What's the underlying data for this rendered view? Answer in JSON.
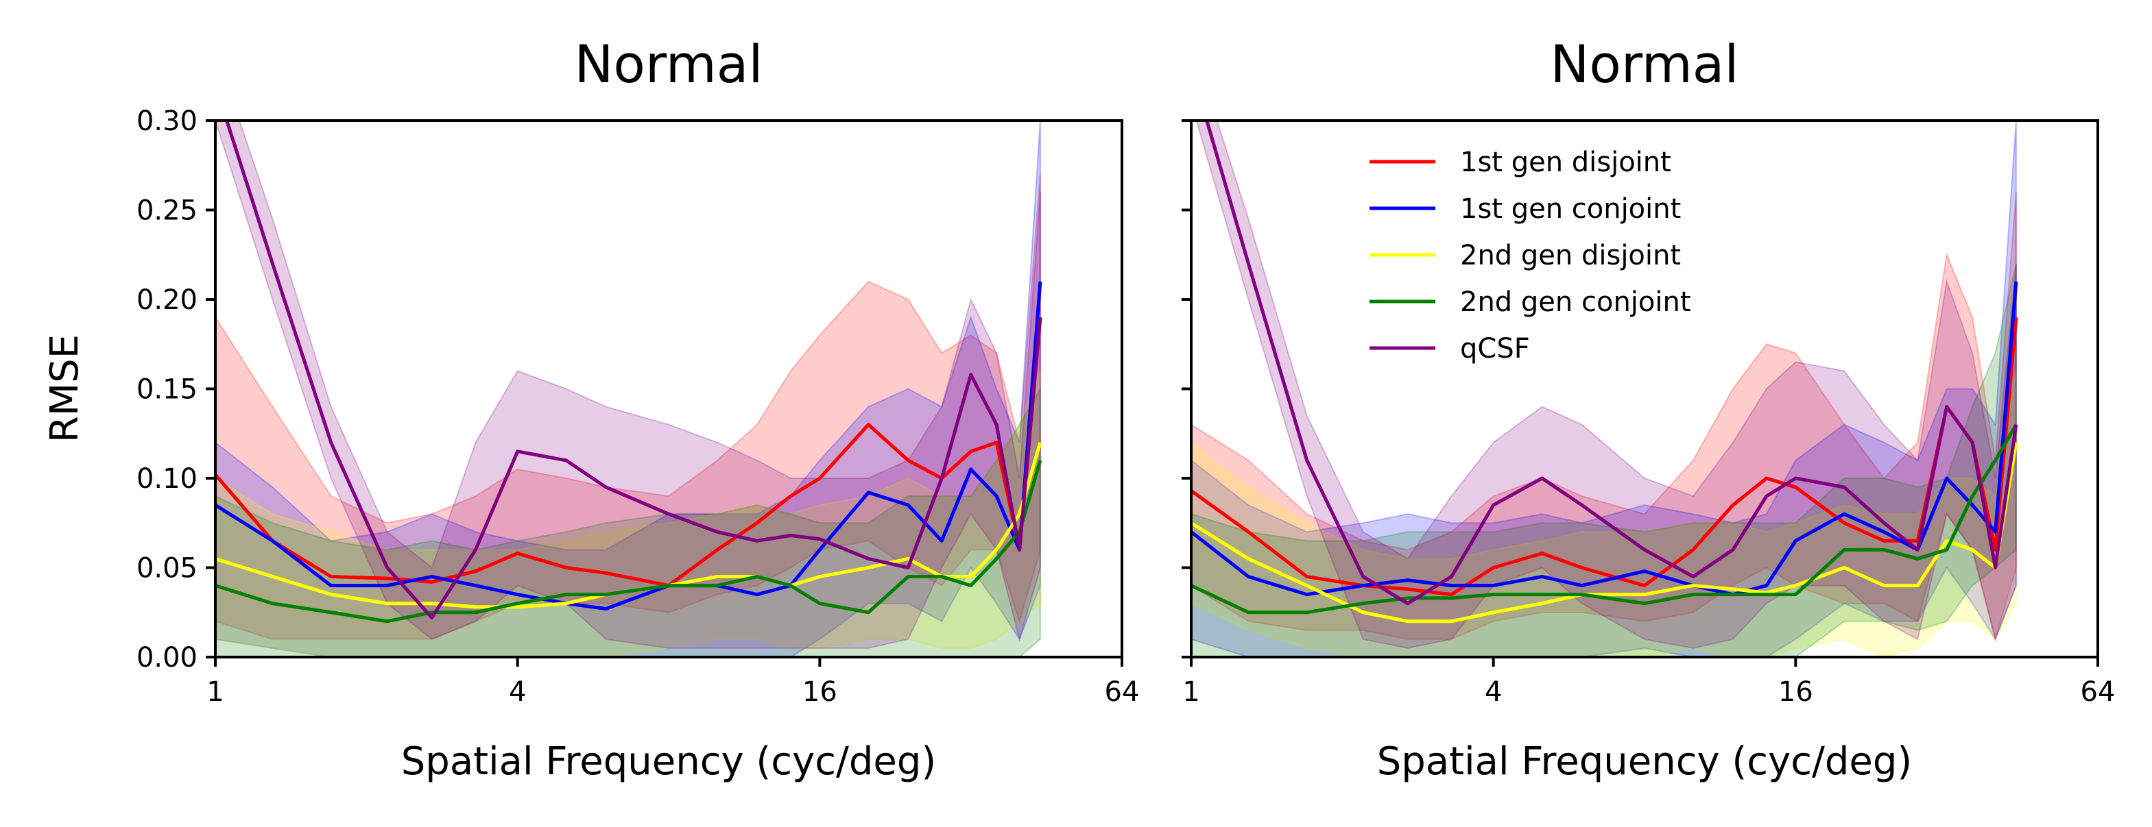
{
  "colors": {
    "first_gen_disjoint": "#ff0000",
    "first_gen_conjoint": "#0000ff",
    "second_gen_disjoint": "#ffff00",
    "second_gen_conjoint": "#008000",
    "qcsf": "#800080"
  },
  "chart_data": [
    {
      "type": "line",
      "title": "Normal",
      "xlabel": "Spatial Frequency (cyc/deg)",
      "ylabel": "RMSE",
      "xscale": "log2",
      "xlim": [
        1,
        64
      ],
      "ylim": [
        0,
        0.3
      ],
      "xticks": [
        1,
        4,
        16,
        64
      ],
      "xtick_labels": [
        "1",
        "4",
        "16",
        "64"
      ],
      "yticks": [
        0,
        0.05,
        0.1,
        0.15,
        0.2,
        0.25,
        0.3
      ],
      "ytick_labels": [
        "0.00",
        "0.05",
        "0.10",
        "0.15",
        "0.20",
        "0.25",
        "0.30"
      ],
      "grid": false,
      "legend": false,
      "series": [
        {
          "name": "1st gen disjoint",
          "color_key": "first_gen_disjoint",
          "x": [
            1,
            1.3,
            1.7,
            2.2,
            2.7,
            3.3,
            4,
            5,
            6,
            8,
            10,
            12,
            14,
            16,
            20,
            24,
            28,
            32,
            36,
            40,
            44
          ],
          "y": [
            0.102,
            0.065,
            0.045,
            0.044,
            0.042,
            0.048,
            0.058,
            0.05,
            0.047,
            0.04,
            0.06,
            0.075,
            0.09,
            0.1,
            0.13,
            0.11,
            0.1,
            0.115,
            0.12,
            0.06,
            0.19
          ],
          "lower": [
            0.02,
            0.01,
            0.01,
            0.01,
            0.01,
            0.02,
            0.03,
            0.03,
            0.03,
            0.025,
            0.035,
            0.04,
            0.05,
            0.06,
            0.065,
            0.05,
            0.04,
            0.06,
            0.06,
            0.02,
            0.06
          ],
          "upper": [
            0.19,
            0.14,
            0.09,
            0.075,
            0.08,
            0.09,
            0.105,
            0.1,
            0.095,
            0.09,
            0.11,
            0.13,
            0.16,
            0.18,
            0.21,
            0.2,
            0.17,
            0.18,
            0.17,
            0.12,
            0.27
          ]
        },
        {
          "name": "1st gen conjoint",
          "color_key": "first_gen_conjoint",
          "x": [
            1,
            1.3,
            1.7,
            2.2,
            2.7,
            3.3,
            4,
            5,
            6,
            8,
            10,
            12,
            14,
            16,
            20,
            24,
            28,
            32,
            36,
            40,
            44
          ],
          "y": [
            0.085,
            0.065,
            0.04,
            0.04,
            0.045,
            0.04,
            0.035,
            0.03,
            0.027,
            0.04,
            0.04,
            0.035,
            0.04,
            0.06,
            0.092,
            0.085,
            0.065,
            0.105,
            0.09,
            0.06,
            0.21
          ],
          "lower": [
            0.01,
            0.005,
            0,
            0,
            0,
            0,
            0,
            0,
            0,
            0,
            0,
            0,
            0,
            0.01,
            0.03,
            0.03,
            0.02,
            0.05,
            0.03,
            0.01,
            0.04
          ],
          "upper": [
            0.12,
            0.095,
            0.065,
            0.07,
            0.08,
            0.07,
            0.065,
            0.06,
            0.06,
            0.08,
            0.08,
            0.08,
            0.09,
            0.11,
            0.14,
            0.15,
            0.14,
            0.19,
            0.15,
            0.12,
            0.3
          ]
        },
        {
          "name": "2nd gen disjoint",
          "color_key": "second_gen_disjoint",
          "x": [
            1,
            1.3,
            1.7,
            2.2,
            2.7,
            3.3,
            4,
            5,
            6,
            8,
            10,
            12,
            14,
            16,
            20,
            24,
            28,
            32,
            36,
            40,
            44
          ],
          "y": [
            0.055,
            0.045,
            0.035,
            0.03,
            0.03,
            0.028,
            0.028,
            0.03,
            0.035,
            0.04,
            0.045,
            0.045,
            0.04,
            0.045,
            0.05,
            0.055,
            0.045,
            0.045,
            0.06,
            0.08,
            0.12
          ],
          "lower": [
            0.01,
            0.005,
            0,
            0,
            0,
            0,
            0,
            0,
            0,
            0.005,
            0.01,
            0.01,
            0.005,
            0.005,
            0.01,
            0.01,
            0.005,
            0.005,
            0.01,
            0.02,
            0.03
          ],
          "upper": [
            0.1,
            0.08,
            0.07,
            0.06,
            0.06,
            0.06,
            0.06,
            0.065,
            0.07,
            0.075,
            0.08,
            0.085,
            0.08,
            0.085,
            0.09,
            0.1,
            0.09,
            0.09,
            0.11,
            0.13,
            0.16
          ]
        },
        {
          "name": "2nd gen conjoint",
          "color_key": "second_gen_conjoint",
          "x": [
            1,
            1.3,
            1.7,
            2.2,
            2.7,
            3.3,
            4,
            5,
            6,
            8,
            10,
            12,
            14,
            16,
            20,
            24,
            28,
            32,
            36,
            40,
            44
          ],
          "y": [
            0.04,
            0.03,
            0.025,
            0.02,
            0.025,
            0.025,
            0.03,
            0.035,
            0.035,
            0.04,
            0.04,
            0.045,
            0.04,
            0.03,
            0.025,
            0.045,
            0.045,
            0.04,
            0.055,
            0.07,
            0.11
          ],
          "lower": [
            0,
            0,
            0,
            0,
            0,
            0,
            0,
            0,
            0,
            0,
            0,
            0,
            0,
            0,
            0,
            0,
            0,
            0,
            0,
            0,
            0.01
          ],
          "upper": [
            0.09,
            0.075,
            0.065,
            0.06,
            0.065,
            0.06,
            0.065,
            0.07,
            0.075,
            0.08,
            0.08,
            0.085,
            0.08,
            0.075,
            0.075,
            0.09,
            0.09,
            0.09,
            0.11,
            0.13,
            0.15
          ]
        },
        {
          "name": "qCSF",
          "color_key": "qcsf",
          "x": [
            1,
            1.3,
            1.7,
            2.2,
            2.7,
            3.3,
            4,
            5,
            6,
            8,
            10,
            12,
            14,
            16,
            20,
            24,
            28,
            32,
            36,
            40,
            44
          ],
          "y": [
            0.32,
            0.22,
            0.12,
            0.05,
            0.022,
            0.06,
            0.115,
            0.11,
            0.095,
            0.08,
            0.07,
            0.065,
            0.068,
            0.066,
            0.055,
            0.05,
            0.1,
            0.158,
            0.13,
            0.06,
            0.19
          ],
          "lower": [
            0.3,
            0.2,
            0.1,
            0.03,
            0.01,
            0.02,
            0.04,
            0.03,
            0.01,
            0.005,
            0.005,
            0.005,
            0.005,
            0.005,
            0.005,
            0.01,
            0.05,
            0.08,
            0.06,
            0.01,
            0.05
          ],
          "upper": [
            0.34,
            0.245,
            0.14,
            0.07,
            0.05,
            0.12,
            0.16,
            0.15,
            0.14,
            0.13,
            0.12,
            0.11,
            0.1,
            0.1,
            0.1,
            0.11,
            0.14,
            0.2,
            0.17,
            0.1,
            0.26
          ]
        }
      ]
    },
    {
      "type": "line",
      "title": "Normal",
      "xlabel": "Spatial Frequency (cyc/deg)",
      "ylabel": "",
      "xscale": "log2",
      "xlim": [
        1,
        64
      ],
      "ylim": [
        0,
        0.3
      ],
      "xticks": [
        1,
        4,
        16,
        64
      ],
      "xtick_labels": [
        "1",
        "4",
        "16",
        "64"
      ],
      "yticks": [
        0,
        0.05,
        0.1,
        0.15,
        0.2,
        0.25,
        0.3
      ],
      "ytick_labels": [],
      "grid": false,
      "legend": true,
      "legend_placement": "upper-left",
      "series": [
        {
          "name": "1st gen disjoint",
          "color_key": "first_gen_disjoint",
          "x": [
            1,
            1.3,
            1.7,
            2.2,
            2.7,
            3.3,
            4,
            5,
            6,
            8,
            10,
            12,
            14,
            16,
            20,
            24,
            28,
            32,
            36,
            40,
            44
          ],
          "y": [
            0.093,
            0.07,
            0.045,
            0.04,
            0.038,
            0.035,
            0.05,
            0.058,
            0.05,
            0.04,
            0.06,
            0.085,
            0.1,
            0.095,
            0.075,
            0.065,
            0.065,
            0.14,
            0.12,
            0.06,
            0.19
          ],
          "lower": [
            0.04,
            0.02,
            0.015,
            0.015,
            0.01,
            0.01,
            0.02,
            0.025,
            0.025,
            0.02,
            0.025,
            0.04,
            0.05,
            0.04,
            0.03,
            0.03,
            0.02,
            0.08,
            0.06,
            0.01,
            0.05
          ],
          "upper": [
            0.13,
            0.11,
            0.08,
            0.065,
            0.06,
            0.07,
            0.09,
            0.1,
            0.09,
            0.08,
            0.11,
            0.15,
            0.175,
            0.17,
            0.13,
            0.1,
            0.12,
            0.225,
            0.19,
            0.11,
            0.26
          ]
        },
        {
          "name": "1st gen conjoint",
          "color_key": "first_gen_conjoint",
          "x": [
            1,
            1.3,
            1.7,
            2.2,
            2.7,
            3.3,
            4,
            5,
            6,
            8,
            10,
            12,
            14,
            16,
            20,
            24,
            28,
            32,
            36,
            40,
            44
          ],
          "y": [
            0.07,
            0.045,
            0.035,
            0.04,
            0.043,
            0.04,
            0.04,
            0.045,
            0.04,
            0.048,
            0.04,
            0.035,
            0.04,
            0.065,
            0.08,
            0.07,
            0.06,
            0.1,
            0.085,
            0.07,
            0.21
          ],
          "lower": [
            0.01,
            0,
            0,
            0,
            0,
            0,
            0,
            0,
            0,
            0.005,
            0,
            0,
            0,
            0.01,
            0.03,
            0.02,
            0.02,
            0.05,
            0.03,
            0.01,
            0.04
          ],
          "upper": [
            0.11,
            0.085,
            0.07,
            0.075,
            0.08,
            0.075,
            0.075,
            0.08,
            0.075,
            0.085,
            0.08,
            0.075,
            0.08,
            0.11,
            0.13,
            0.12,
            0.11,
            0.15,
            0.15,
            0.13,
            0.3
          ]
        },
        {
          "name": "2nd gen disjoint",
          "color_key": "second_gen_disjoint",
          "x": [
            1,
            1.3,
            1.7,
            2.2,
            2.7,
            3.3,
            4,
            5,
            6,
            8,
            10,
            12,
            14,
            16,
            20,
            24,
            28,
            32,
            36,
            40,
            44
          ],
          "y": [
            0.075,
            0.055,
            0.04,
            0.025,
            0.02,
            0.02,
            0.025,
            0.03,
            0.035,
            0.035,
            0.04,
            0.038,
            0.036,
            0.04,
            0.05,
            0.04,
            0.04,
            0.065,
            0.06,
            0.05,
            0.12
          ],
          "lower": [
            0.03,
            0.015,
            0.005,
            0,
            0,
            0,
            0,
            0,
            0,
            0,
            0.005,
            0,
            0,
            0.005,
            0.01,
            0,
            0.005,
            0.02,
            0.02,
            0.01,
            0.03
          ],
          "upper": [
            0.12,
            0.095,
            0.075,
            0.06,
            0.055,
            0.055,
            0.06,
            0.065,
            0.07,
            0.07,
            0.075,
            0.075,
            0.07,
            0.075,
            0.085,
            0.08,
            0.08,
            0.1,
            0.1,
            0.09,
            0.16
          ]
        },
        {
          "name": "2nd gen conjoint",
          "color_key": "second_gen_conjoint",
          "x": [
            1,
            1.3,
            1.7,
            2.2,
            2.7,
            3.3,
            4,
            5,
            6,
            8,
            10,
            12,
            14,
            16,
            20,
            24,
            28,
            32,
            36,
            40,
            44
          ],
          "y": [
            0.04,
            0.025,
            0.025,
            0.03,
            0.033,
            0.033,
            0.035,
            0.035,
            0.035,
            0.03,
            0.035,
            0.035,
            0.035,
            0.035,
            0.06,
            0.06,
            0.055,
            0.06,
            0.09,
            0.11,
            0.13
          ],
          "lower": [
            0,
            0,
            0,
            0,
            0,
            0,
            0,
            0,
            0,
            0,
            0,
            0,
            0,
            0,
            0.02,
            0.02,
            0.015,
            0.02,
            0.04,
            0.05,
            0.06
          ],
          "upper": [
            0.08,
            0.07,
            0.065,
            0.065,
            0.07,
            0.07,
            0.07,
            0.075,
            0.075,
            0.07,
            0.075,
            0.075,
            0.075,
            0.075,
            0.1,
            0.1,
            0.095,
            0.1,
            0.14,
            0.17,
            0.22
          ]
        },
        {
          "name": "qCSF",
          "color_key": "qcsf",
          "x": [
            1,
            1.3,
            1.7,
            2.2,
            2.7,
            3.3,
            4,
            5,
            6,
            8,
            10,
            12,
            14,
            16,
            20,
            24,
            28,
            32,
            36,
            40,
            44
          ],
          "y": [
            0.33,
            0.22,
            0.11,
            0.045,
            0.03,
            0.045,
            0.085,
            0.1,
            0.085,
            0.06,
            0.045,
            0.06,
            0.09,
            0.1,
            0.095,
            0.075,
            0.06,
            0.14,
            0.12,
            0.05,
            0.13
          ],
          "lower": [
            0.31,
            0.2,
            0.09,
            0.01,
            0.005,
            0.01,
            0.04,
            0.05,
            0.03,
            0.01,
            0.005,
            0.01,
            0.03,
            0.04,
            0.04,
            0.02,
            0.01,
            0.08,
            0.06,
            0.01,
            0.04
          ],
          "upper": [
            0.345,
            0.245,
            0.135,
            0.07,
            0.055,
            0.09,
            0.12,
            0.14,
            0.13,
            0.1,
            0.09,
            0.12,
            0.15,
            0.165,
            0.16,
            0.13,
            0.11,
            0.21,
            0.17,
            0.1,
            0.22
          ]
        }
      ]
    }
  ]
}
